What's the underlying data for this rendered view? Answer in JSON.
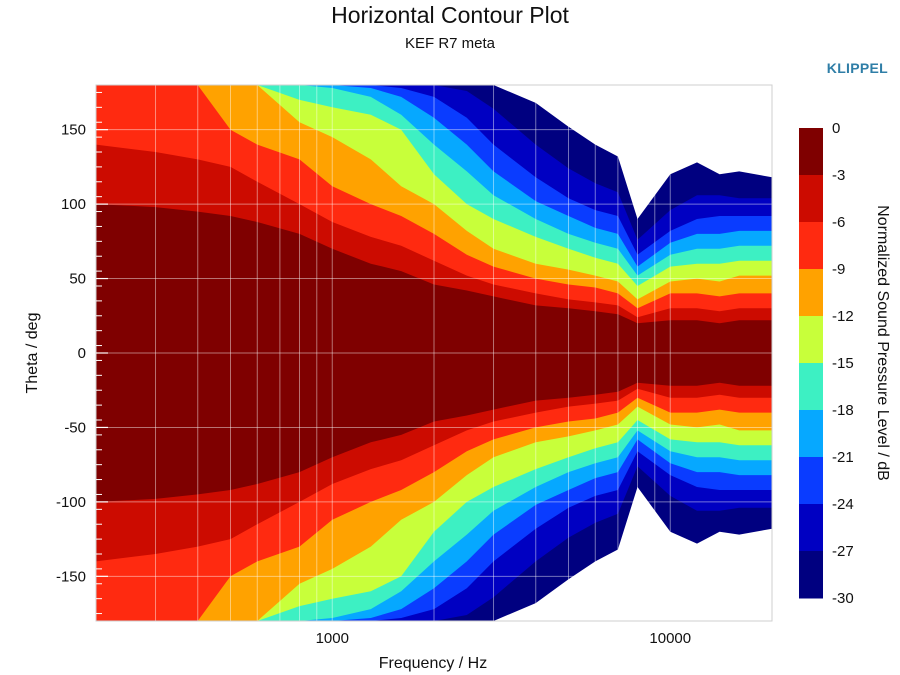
{
  "header": {
    "title": "Horizontal Contour Plot",
    "subtitle": "KEF R7 meta",
    "brand": "KLIPPEL"
  },
  "chart_data": {
    "type": "heatmap",
    "title": "Horizontal Contour Plot",
    "subtitle": "KEF R7 meta",
    "xlabel": "Frequency / Hz",
    "ylabel": "Theta / deg",
    "colorbar_label": "Normalized Sound Pressure Level / dB",
    "x_scale": "log",
    "xlim": [
      200,
      20000
    ],
    "ylim": [
      -180,
      180
    ],
    "x_ticks": [
      1000,
      10000
    ],
    "x_tick_labels": [
      "1000",
      "10000"
    ],
    "y_ticks": [
      150,
      100,
      50,
      0,
      -50,
      -100,
      -150
    ],
    "y_tick_labels": [
      "150",
      "100",
      "50",
      "0",
      "-50",
      "-100",
      "-150"
    ],
    "grid": true,
    "colorbar_ticks": [
      "0",
      "-3",
      "-6",
      "-9",
      "-12",
      "-15",
      "-18",
      "-21",
      "-24",
      "-27",
      "-30"
    ],
    "levels": [
      {
        "range": [
          -3,
          0
        ],
        "color": "#7f0000"
      },
      {
        "range": [
          -6,
          -3
        ],
        "color": "#cc0b00"
      },
      {
        "range": [
          -9,
          -6
        ],
        "color": "#ff2a10"
      },
      {
        "range": [
          -12,
          -9
        ],
        "color": "#ffa200"
      },
      {
        "range": [
          -15,
          -12
        ],
        "color": "#c8ff3a"
      },
      {
        "range": [
          -18,
          -15
        ],
        "color": "#3df0c3"
      },
      {
        "range": [
          -21,
          -18
        ],
        "color": "#06a8ff"
      },
      {
        "range": [
          -24,
          -21
        ],
        "color": "#0a3cff"
      },
      {
        "range": [
          -27,
          -24
        ],
        "color": "#0000c2"
      },
      {
        "range": [
          -30,
          -27
        ],
        "color": "#000080"
      }
    ],
    "contour_boundaries_deg": {
      "frequencies_hz": [
        200,
        300,
        400,
        500,
        600,
        800,
        1000,
        1300,
        1600,
        2000,
        2500,
        3000,
        4000,
        5000,
        6000,
        7000,
        8000,
        10000,
        12000,
        14000,
        16000,
        20000
      ],
      "angle_at_level": {
        "-3": [
          100,
          98,
          95,
          92,
          88,
          80,
          70,
          60,
          55,
          46,
          42,
          38,
          32,
          30,
          28,
          26,
          20,
          22,
          22,
          20,
          22,
          22
        ],
        "-6": [
          140,
          135,
          130,
          125,
          115,
          100,
          88,
          78,
          72,
          62,
          52,
          46,
          40,
          36,
          34,
          32,
          24,
          30,
          30,
          28,
          30,
          30
        ],
        "-9": [
          180,
          180,
          180,
          150,
          140,
          130,
          112,
          100,
          92,
          80,
          66,
          58,
          50,
          46,
          44,
          40,
          30,
          40,
          40,
          38,
          40,
          40
        ],
        "-12": [
          180,
          180,
          180,
          180,
          180,
          155,
          145,
          130,
          112,
          100,
          82,
          70,
          60,
          56,
          52,
          48,
          36,
          48,
          50,
          48,
          52,
          52
        ],
        "-15": [
          180,
          180,
          180,
          180,
          180,
          170,
          165,
          160,
          150,
          120,
          100,
          90,
          78,
          70,
          64,
          60,
          45,
          58,
          60,
          60,
          62,
          62
        ],
        "-18": [
          180,
          180,
          180,
          180,
          180,
          180,
          178,
          172,
          160,
          140,
          122,
          106,
          90,
          80,
          74,
          70,
          52,
          66,
          70,
          70,
          72,
          72
        ],
        "-21": [
          180,
          180,
          180,
          180,
          180,
          180,
          180,
          178,
          172,
          158,
          140,
          122,
          102,
          92,
          84,
          80,
          58,
          74,
          80,
          80,
          82,
          82
        ],
        "-24": [
          180,
          180,
          180,
          180,
          180,
          180,
          180,
          180,
          178,
          172,
          158,
          140,
          118,
          104,
          96,
          92,
          66,
          82,
          90,
          92,
          92,
          92
        ],
        "-27": [
          180,
          180,
          180,
          180,
          180,
          180,
          180,
          180,
          180,
          180,
          176,
          164,
          140,
          124,
          114,
          108,
          76,
          96,
          106,
          106,
          104,
          104
        ],
        "-30": [
          180,
          180,
          180,
          180,
          180,
          180,
          180,
          180,
          180,
          180,
          180,
          180,
          168,
          152,
          140,
          132,
          90,
          120,
          128,
          120,
          122,
          118
        ]
      }
    }
  }
}
